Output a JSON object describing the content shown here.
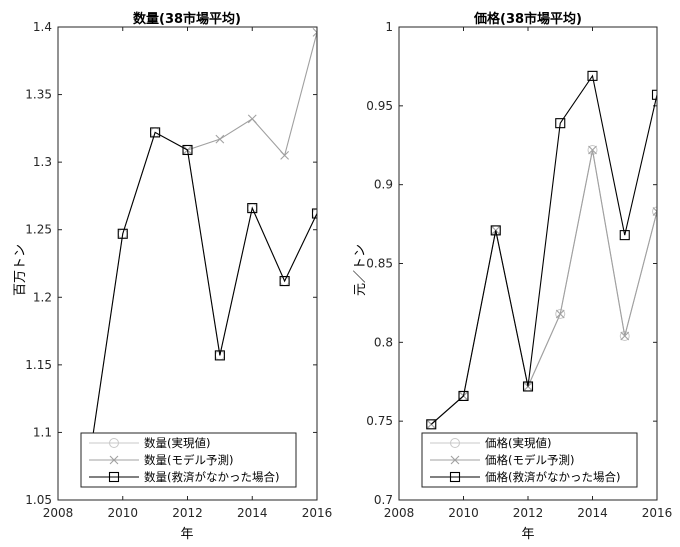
{
  "chart_data": [
    {
      "type": "line",
      "title": "数量(38市場平均)",
      "xlabel": "年",
      "ylabel": "百万トン",
      "xlim": [
        2008,
        2016
      ],
      "ylim": [
        1.05,
        1.4
      ],
      "xticks": [
        2008,
        2010,
        2012,
        2014,
        2016
      ],
      "yticks": [
        1.05,
        1.1,
        1.15,
        1.2,
        1.25,
        1.3,
        1.35,
        1.4
      ],
      "xtick_labels": [
        "2008",
        "2010",
        "2012",
        "2014",
        "2016"
      ],
      "ytick_labels": [
        "1.05",
        "1.1",
        "1.15",
        "1.2",
        "1.25",
        "1.3",
        "1.35",
        "1.4"
      ],
      "legend_position": "bottom",
      "series": [
        {
          "name": "数量(実現値)",
          "color": "#c8c8c8",
          "marker": "circle",
          "x": [
            2009,
            2010,
            2011,
            2012,
            2013,
            2014,
            2015,
            2016
          ],
          "y": [
            1.085,
            1.247,
            1.322,
            1.309,
            1.157,
            1.266,
            1.212,
            1.262
          ]
        },
        {
          "name": "数量(モデル予測)",
          "color": "#a0a0a0",
          "marker": "x",
          "x": [
            2012,
            2013,
            2014,
            2015,
            2016
          ],
          "y": [
            1.309,
            1.317,
            1.332,
            1.305,
            1.396
          ]
        },
        {
          "name": "数量(救済がなかった場合)",
          "color": "#000000",
          "marker": "square",
          "x": [
            2009,
            2010,
            2011,
            2012,
            2013,
            2014,
            2015,
            2016
          ],
          "y": [
            1.085,
            1.247,
            1.322,
            1.309,
            1.157,
            1.266,
            1.212,
            1.262
          ]
        }
      ]
    },
    {
      "type": "line",
      "title": "価格(38市場平均)",
      "xlabel": "年",
      "ylabel": "元／トン",
      "xlim": [
        2008,
        2016
      ],
      "ylim": [
        0.7,
        1.0
      ],
      "xticks": [
        2008,
        2010,
        2012,
        2014,
        2016
      ],
      "yticks": [
        0.7,
        0.75,
        0.8,
        0.85,
        0.9,
        0.95,
        1.0
      ],
      "xtick_labels": [
        "2008",
        "2010",
        "2012",
        "2014",
        "2016"
      ],
      "ytick_labels": [
        "0.7",
        "0.75",
        "0.8",
        "0.85",
        "0.9",
        "0.95",
        "1"
      ],
      "legend_position": "bottom",
      "series": [
        {
          "name": "価格(実現値)",
          "color": "#c8c8c8",
          "marker": "circle",
          "x": [
            2009,
            2010,
            2011,
            2012,
            2013,
            2014,
            2015,
            2016
          ],
          "y": [
            0.748,
            0.766,
            0.871,
            0.772,
            0.818,
            0.922,
            0.804,
            0.883
          ]
        },
        {
          "name": "価格(モデル予測)",
          "color": "#a0a0a0",
          "marker": "x",
          "x": [
            2009,
            2010,
            2011,
            2012,
            2013,
            2014,
            2015,
            2016
          ],
          "y": [
            0.748,
            0.766,
            0.871,
            0.772,
            0.818,
            0.922,
            0.804,
            0.883
          ]
        },
        {
          "name": "価格(救済がなかった場合)",
          "color": "#000000",
          "marker": "square",
          "x": [
            2009,
            2010,
            2011,
            2012,
            2013,
            2014,
            2015,
            2016
          ],
          "y": [
            0.748,
            0.766,
            0.871,
            0.772,
            0.939,
            0.969,
            0.868,
            0.957
          ]
        }
      ]
    }
  ]
}
